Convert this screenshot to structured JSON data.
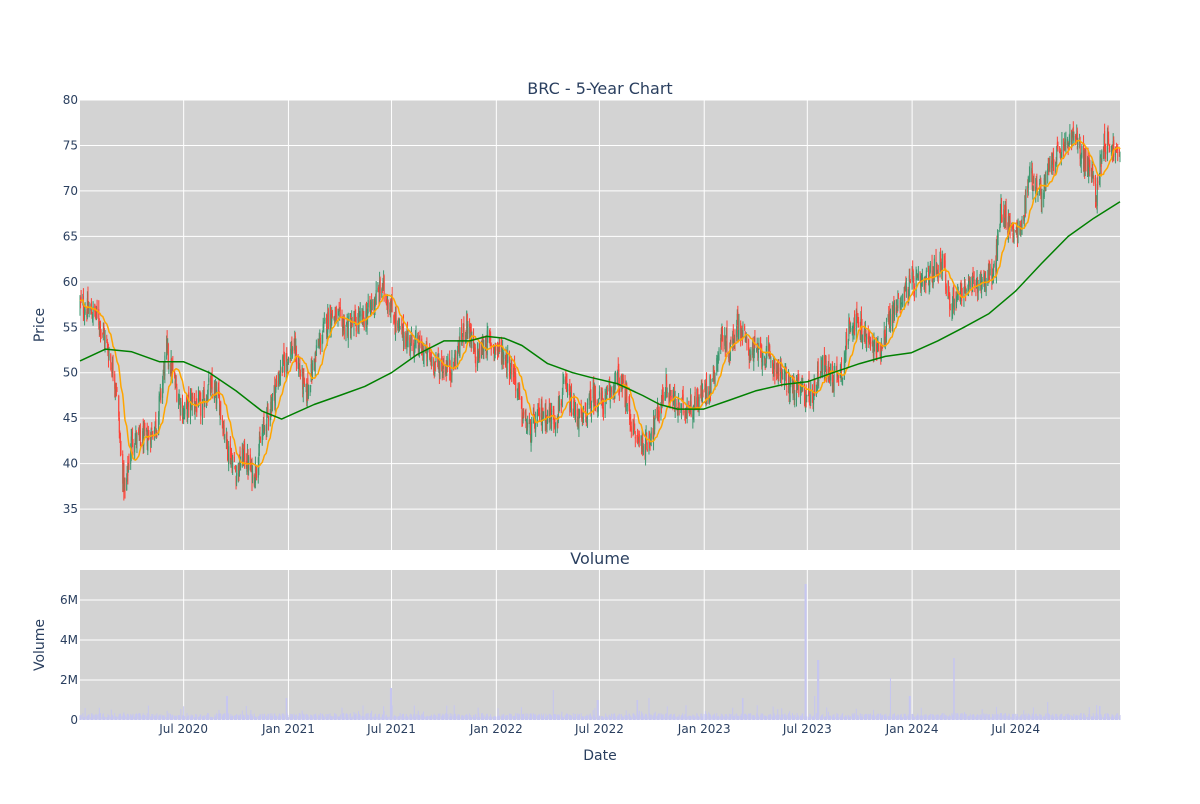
{
  "chart_data": [
    {
      "type": "candlestick",
      "title": "BRC - 5-Year Chart",
      "ylabel": "Price",
      "ylim": [
        30.5,
        80
      ],
      "xlim": [
        "2020-01-01",
        "2024-12-31"
      ],
      "yticks": [
        35,
        40,
        45,
        50,
        55,
        60,
        65,
        70,
        75,
        80
      ],
      "background": "#d3d3d3",
      "grid": true,
      "colors": {
        "increasing": "#3d9970",
        "decreasing": "#ff4136",
        "ma_short": "#ffa500",
        "ma_long": "#008000"
      },
      "close_path": [
        [
          "2020-01-02",
          57.5
        ],
        [
          "2020-02-01",
          56.2
        ],
        [
          "2020-02-18",
          52.8
        ],
        [
          "2020-03-05",
          48.5
        ],
        [
          "2020-03-12",
          41.5
        ],
        [
          "2020-03-20",
          36.5
        ],
        [
          "2020-04-01",
          43.0
        ],
        [
          "2020-04-15",
          42.5
        ],
        [
          "2020-05-01",
          43.0
        ],
        [
          "2020-05-15",
          44.5
        ],
        [
          "2020-06-01",
          52.5
        ],
        [
          "2020-06-15",
          49.0
        ],
        [
          "2020-07-01",
          45.5
        ],
        [
          "2020-07-15",
          47.0
        ],
        [
          "2020-08-01",
          46.0
        ],
        [
          "2020-08-15",
          48.5
        ],
        [
          "2020-09-01",
          47.0
        ],
        [
          "2020-09-15",
          42.0
        ],
        [
          "2020-10-01",
          39.0
        ],
        [
          "2020-10-15",
          41.0
        ],
        [
          "2020-11-01",
          38.5
        ],
        [
          "2020-11-15",
          43.0
        ],
        [
          "2020-12-01",
          46.5
        ],
        [
          "2020-12-20",
          50.5
        ],
        [
          "2021-01-10",
          53.0
        ],
        [
          "2021-02-01",
          47.5
        ],
        [
          "2021-02-20",
          52.5
        ],
        [
          "2021-03-15",
          56.5
        ],
        [
          "2021-04-15",
          55.0
        ],
        [
          "2021-05-15",
          56.0
        ],
        [
          "2021-06-01",
          58.0
        ],
        [
          "2021-06-15",
          59.5
        ],
        [
          "2021-07-01",
          57.0
        ],
        [
          "2021-07-15",
          54.5
        ],
        [
          "2021-08-15",
          53.0
        ],
        [
          "2021-09-15",
          51.0
        ],
        [
          "2021-10-15",
          50.5
        ],
        [
          "2021-11-10",
          55.5
        ],
        [
          "2021-11-25",
          51.5
        ],
        [
          "2021-12-15",
          53.5
        ],
        [
          "2022-01-15",
          52.0
        ],
        [
          "2022-02-01",
          50.0
        ],
        [
          "2022-02-15",
          45.5
        ],
        [
          "2022-03-01",
          43.5
        ],
        [
          "2022-03-20",
          45.5
        ],
        [
          "2022-04-15",
          45.0
        ],
        [
          "2022-05-01",
          48.5
        ],
        [
          "2022-05-15",
          46.0
        ],
        [
          "2022-06-01",
          44.5
        ],
        [
          "2022-06-20",
          47.5
        ],
        [
          "2022-07-10",
          46.5
        ],
        [
          "2022-08-01",
          49.5
        ],
        [
          "2022-08-15",
          47.5
        ],
        [
          "2022-09-01",
          43.0
        ],
        [
          "2022-09-20",
          42.0
        ],
        [
          "2022-10-10",
          45.0
        ],
        [
          "2022-10-25",
          48.5
        ],
        [
          "2022-11-15",
          46.0
        ],
        [
          "2022-12-15",
          46.5
        ],
        [
          "2023-01-15",
          49.0
        ],
        [
          "2023-02-01",
          54.0
        ],
        [
          "2023-02-15",
          52.5
        ],
        [
          "2023-03-01",
          55.5
        ],
        [
          "2023-03-20",
          52.5
        ],
        [
          "2023-04-15",
          52.0
        ],
        [
          "2023-05-10",
          50.5
        ],
        [
          "2023-06-01",
          48.5
        ],
        [
          "2023-06-20",
          48.0
        ],
        [
          "2023-07-10",
          47.5
        ],
        [
          "2023-07-25",
          51.0
        ],
        [
          "2023-08-15",
          49.5
        ],
        [
          "2023-09-01",
          50.5
        ],
        [
          "2023-09-15",
          56.0
        ],
        [
          "2023-10-01",
          55.0
        ],
        [
          "2023-10-20",
          53.0
        ],
        [
          "2023-11-05",
          52.5
        ],
        [
          "2023-11-20",
          55.5
        ],
        [
          "2023-12-10",
          58.0
        ],
        [
          "2024-01-01",
          60.0
        ],
        [
          "2024-01-20",
          59.5
        ],
        [
          "2024-02-10",
          61.5
        ],
        [
          "2024-02-25",
          62.5
        ],
        [
          "2024-03-05",
          57.5
        ],
        [
          "2024-03-25",
          59.0
        ],
        [
          "2024-04-15",
          59.5
        ],
        [
          "2024-05-10",
          60.5
        ],
        [
          "2024-05-25",
          61.0
        ],
        [
          "2024-06-05",
          68.0
        ],
        [
          "2024-06-20",
          66.0
        ],
        [
          "2024-07-10",
          65.5
        ],
        [
          "2024-07-25",
          72.0
        ],
        [
          "2024-08-15",
          69.5
        ],
        [
          "2024-09-01",
          73.0
        ],
        [
          "2024-09-20",
          74.5
        ],
        [
          "2024-10-10",
          76.0
        ],
        [
          "2024-10-25",
          74.0
        ],
        [
          "2024-11-10",
          72.0
        ],
        [
          "2024-11-20",
          69.5
        ],
        [
          "2024-12-01",
          75.5
        ],
        [
          "2024-12-15",
          75.0
        ],
        [
          "2024-12-31",
          73.5
        ]
      ],
      "ma_long": [
        [
          "2020-01-01",
          51.3
        ],
        [
          "2020-02-15",
          52.6
        ],
        [
          "2020-04-01",
          52.3
        ],
        [
          "2020-05-20",
          51.2
        ],
        [
          "2020-07-01",
          51.2
        ],
        [
          "2020-08-15",
          50.0
        ],
        [
          "2020-10-01",
          48.0
        ],
        [
          "2020-11-15",
          45.8
        ],
        [
          "2020-12-20",
          44.9
        ],
        [
          "2021-02-15",
          46.5
        ],
        [
          "2021-04-01",
          47.5
        ],
        [
          "2021-05-15",
          48.5
        ],
        [
          "2021-07-01",
          50.0
        ],
        [
          "2021-08-15",
          52.0
        ],
        [
          "2021-10-01",
          53.5
        ],
        [
          "2021-11-15",
          53.5
        ],
        [
          "2021-12-15",
          54.0
        ],
        [
          "2022-01-15",
          53.8
        ],
        [
          "2022-02-15",
          53.0
        ],
        [
          "2022-04-01",
          51.0
        ],
        [
          "2022-05-15",
          50.0
        ],
        [
          "2022-06-15",
          49.5
        ],
        [
          "2022-08-01",
          48.8
        ],
        [
          "2022-09-15",
          47.5
        ],
        [
          "2022-10-15",
          46.5
        ],
        [
          "2022-11-15",
          46.0
        ],
        [
          "2022-12-31",
          46.0
        ],
        [
          "2023-02-15",
          47.0
        ],
        [
          "2023-04-01",
          48.0
        ],
        [
          "2023-05-20",
          48.7
        ],
        [
          "2023-07-01",
          49.0
        ],
        [
          "2023-08-15",
          50.0
        ],
        [
          "2023-10-01",
          51.0
        ],
        [
          "2023-11-15",
          51.8
        ],
        [
          "2023-12-31",
          52.2
        ],
        [
          "2024-02-15",
          53.5
        ],
        [
          "2024-04-01",
          55.0
        ],
        [
          "2024-05-15",
          56.5
        ],
        [
          "2024-07-01",
          59.0
        ],
        [
          "2024-08-15",
          62.0
        ],
        [
          "2024-10-01",
          65.0
        ],
        [
          "2024-11-15",
          67.0
        ],
        [
          "2024-12-31",
          68.8
        ]
      ]
    },
    {
      "type": "bar",
      "title": "Volume",
      "ylabel": "Volume",
      "xlabel": "Date",
      "ylim": [
        0,
        7500000
      ],
      "yticks": [
        0,
        2000000,
        4000000,
        6000000
      ],
      "ytick_labels": [
        "0",
        "2M",
        "4M",
        "6M"
      ],
      "xlim": [
        "2020-01-01",
        "2024-12-31"
      ],
      "xtick_dates": [
        "2020-07-01",
        "2021-01-01",
        "2021-07-01",
        "2022-01-01",
        "2022-07-01",
        "2023-01-01",
        "2023-07-01",
        "2024-01-01",
        "2024-07-01"
      ],
      "xtick_labels": [
        "Jul 2020",
        "Jan 2021",
        "Jul 2021",
        "Jan 2022",
        "Jul 2022",
        "Jan 2023",
        "Jul 2023",
        "Jan 2024",
        "Jul 2024"
      ],
      "background": "#d3d3d3",
      "grid": true,
      "bar_color": "#c6c6f0",
      "baseline_volume": 250000,
      "volume_spikes": [
        [
          "2020-09-15",
          1200000
        ],
        [
          "2020-12-28",
          1100000
        ],
        [
          "2021-06-30",
          1600000
        ],
        [
          "2022-04-10",
          1500000
        ],
        [
          "2022-06-28",
          1000000
        ],
        [
          "2022-09-05",
          1000000
        ],
        [
          "2022-09-25",
          1100000
        ],
        [
          "2023-03-10",
          1100000
        ],
        [
          "2023-06-28",
          6800000
        ],
        [
          "2023-07-20",
          3000000
        ],
        [
          "2023-07-15",
          1200000
        ],
        [
          "2023-11-25",
          2100000
        ],
        [
          "2023-12-28",
          1200000
        ],
        [
          "2024-03-15",
          3100000
        ],
        [
          "2024-08-25",
          900000
        ],
        [
          "2024-11-25",
          700000
        ]
      ]
    }
  ]
}
